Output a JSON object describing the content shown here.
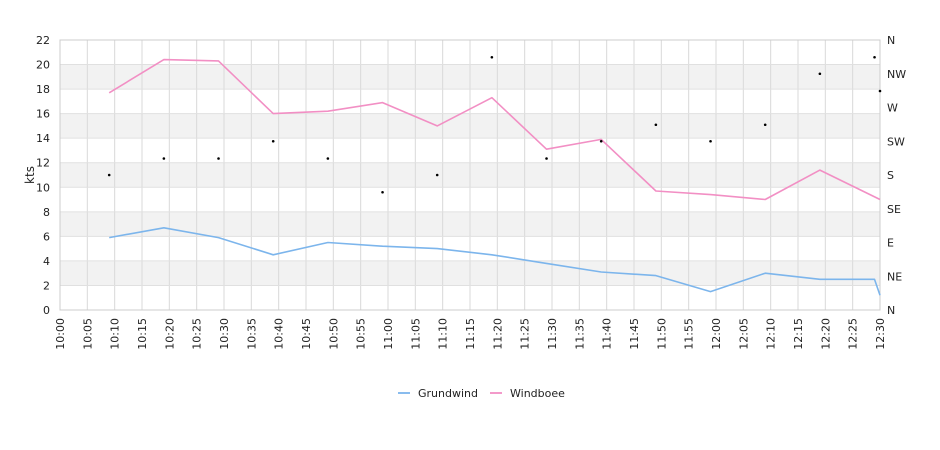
{
  "chart_data": {
    "type": "line",
    "title": "",
    "ylabel": "kts",
    "ylim": [
      0,
      22
    ],
    "yticks": [
      "0",
      "2",
      "4",
      "6",
      "8",
      "10",
      "12",
      "14",
      "16",
      "18",
      "20",
      "22"
    ],
    "x_ticks": [
      "10:00",
      "10:05",
      "10:10",
      "10:15",
      "10:20",
      "10:25",
      "10:30",
      "10:35",
      "10:40",
      "10:45",
      "10:50",
      "10:55",
      "11:00",
      "11:05",
      "11:10",
      "11:15",
      "11:20",
      "11:25",
      "11:30",
      "11:35",
      "11:40",
      "11:45",
      "11:50",
      "11:55",
      "12:00",
      "12:05",
      "12:10",
      "12:15",
      "12:20",
      "12:25",
      "12:30"
    ],
    "right_axis": {
      "labels": [
        "N",
        "NE",
        "E",
        "SE",
        "S",
        "SW",
        "W",
        "NW",
        "N"
      ],
      "range_degrees": [
        0,
        360
      ]
    },
    "grid": true,
    "legend_position": "bottom-center",
    "series": [
      {
        "name": "Grundwind",
        "color": "#7cb5ec",
        "x": [
          "10:09",
          "10:19",
          "10:29",
          "10:39",
          "10:49",
          "10:59",
          "11:09",
          "11:19",
          "11:29",
          "11:39",
          "11:49",
          "11:59",
          "12:09",
          "12:19",
          "12:29",
          "12:30"
        ],
        "values": [
          5.9,
          6.7,
          5.9,
          4.5,
          5.5,
          5.2,
          5.0,
          4.5,
          3.8,
          3.1,
          2.8,
          1.5,
          3.0,
          2.5,
          2.5,
          1.2
        ]
      },
      {
        "name": "Windboee",
        "color": "#f28fc4",
        "x": [
          "10:09",
          "10:19",
          "10:29",
          "10:39",
          "10:49",
          "10:59",
          "11:09",
          "11:19",
          "11:29",
          "11:39",
          "11:49",
          "11:59",
          "12:09",
          "12:19",
          "12:30"
        ],
        "values": [
          17.7,
          20.4,
          20.3,
          16.0,
          16.2,
          16.9,
          15.0,
          17.3,
          13.1,
          13.9,
          9.7,
          9.4,
          9.0,
          11.4,
          9.0
        ]
      }
    ],
    "direction_points": {
      "x": [
        "10:09",
        "10:19",
        "10:29",
        "10:39",
        "10:49",
        "10:59",
        "11:09",
        "11:19",
        "11:29",
        "11:39",
        "11:49",
        "11:59",
        "12:09",
        "12:19",
        "12:29",
        "12:30"
      ],
      "degrees": [
        180,
        202,
        202,
        225,
        202,
        157,
        180,
        337,
        202,
        225,
        247,
        225,
        247,
        315,
        337,
        292
      ]
    }
  }
}
